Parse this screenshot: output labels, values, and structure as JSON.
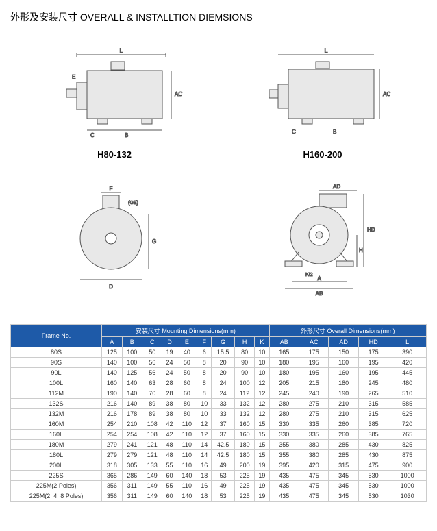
{
  "title": "外形及安装尺寸 OVERALL & INSTALLTION DIEMSIONS",
  "diagram_labels": {
    "left": "H80-132",
    "right": "H160-200"
  },
  "table": {
    "header_groups": [
      {
        "label": "Frame No.",
        "colspan": 1,
        "rowspan": 2
      },
      {
        "label": "安装尺寸 Mounting Dimensions(mm)",
        "colspan": 9
      },
      {
        "label": "外形尺寸 Overall Dimensions(mm)",
        "colspan": 5
      }
    ],
    "columns": [
      "A",
      "B",
      "C",
      "D",
      "E",
      "F",
      "G",
      "H",
      "K",
      "AB",
      "AC",
      "AD",
      "HD",
      "L"
    ],
    "rows": [
      [
        "80S",
        "125",
        "100",
        "50",
        "19",
        "40",
        "6",
        "15.5",
        "80",
        "10",
        "165",
        "175",
        "150",
        "175",
        "390"
      ],
      [
        "90S",
        "140",
        "100",
        "56",
        "24",
        "50",
        "8",
        "20",
        "90",
        "10",
        "180",
        "195",
        "160",
        "195",
        "420"
      ],
      [
        "90L",
        "140",
        "125",
        "56",
        "24",
        "50",
        "8",
        "20",
        "90",
        "10",
        "180",
        "195",
        "160",
        "195",
        "445"
      ],
      [
        "100L",
        "160",
        "140",
        "63",
        "28",
        "60",
        "8",
        "24",
        "100",
        "12",
        "205",
        "215",
        "180",
        "245",
        "480"
      ],
      [
        "112M",
        "190",
        "140",
        "70",
        "28",
        "60",
        "8",
        "24",
        "112",
        "12",
        "245",
        "240",
        "190",
        "265",
        "510"
      ],
      [
        "132S",
        "216",
        "140",
        "89",
        "38",
        "80",
        "10",
        "33",
        "132",
        "12",
        "280",
        "275",
        "210",
        "315",
        "585"
      ],
      [
        "132M",
        "216",
        "178",
        "89",
        "38",
        "80",
        "10",
        "33",
        "132",
        "12",
        "280",
        "275",
        "210",
        "315",
        "625"
      ],
      [
        "160M",
        "254",
        "210",
        "108",
        "42",
        "110",
        "12",
        "37",
        "160",
        "15",
        "330",
        "335",
        "260",
        "385",
        "720"
      ],
      [
        "160L",
        "254",
        "254",
        "108",
        "42",
        "110",
        "12",
        "37",
        "160",
        "15",
        "330",
        "335",
        "260",
        "385",
        "765"
      ],
      [
        "180M",
        "279",
        "241",
        "121",
        "48",
        "110",
        "14",
        "42.5",
        "180",
        "15",
        "355",
        "380",
        "285",
        "430",
        "825"
      ],
      [
        "180L",
        "279",
        "279",
        "121",
        "48",
        "110",
        "14",
        "42.5",
        "180",
        "15",
        "355",
        "380",
        "285",
        "430",
        "875"
      ],
      [
        "200L",
        "318",
        "305",
        "133",
        "55",
        "110",
        "16",
        "49",
        "200",
        "19",
        "395",
        "420",
        "315",
        "475",
        "900"
      ],
      [
        "225S",
        "365",
        "286",
        "149",
        "60",
        "140",
        "18",
        "53",
        "225",
        "19",
        "435",
        "475",
        "345",
        "530",
        "1000"
      ],
      [
        "225M(2 Poles)",
        "356",
        "311",
        "149",
        "55",
        "110",
        "16",
        "49",
        "225",
        "19",
        "435",
        "475",
        "345",
        "530",
        "1000"
      ],
      [
        "225M(2, 4, 8 Poles)",
        "356",
        "311",
        "149",
        "60",
        "140",
        "18",
        "53",
        "225",
        "19",
        "435",
        "475",
        "345",
        "530",
        "1030"
      ]
    ],
    "header_bg": "#1e5aa8",
    "header_color": "#ffffff",
    "border_color": "#cccccc"
  }
}
